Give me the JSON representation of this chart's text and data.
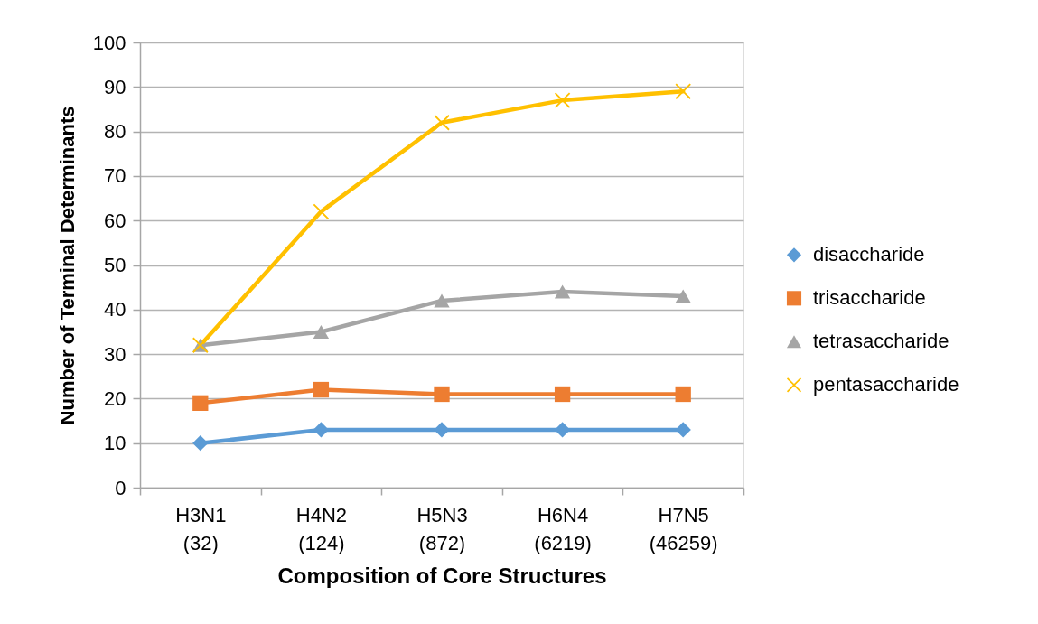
{
  "chart_data": {
    "type": "line",
    "xlabel": "Composition of Core Structures",
    "ylabel": "Number of Terminal Determinants",
    "categories": [
      "H3N1\n(32)",
      "H4N2\n(124)",
      "H5N3\n(872)",
      "H6N4\n(6219)",
      "H7N5\n(46259)"
    ],
    "ylim": [
      0,
      100
    ],
    "yticks": [
      0,
      10,
      20,
      30,
      40,
      50,
      60,
      70,
      80,
      90,
      100
    ],
    "grid": "y",
    "legend": "right",
    "line_style": "solid",
    "series": [
      {
        "name": "disaccharide",
        "color": "#5b9bd5",
        "marker": "diamond",
        "values": [
          10,
          13,
          13,
          13,
          13
        ]
      },
      {
        "name": "trisaccharide",
        "color": "#ed7d31",
        "marker": "square",
        "values": [
          19,
          22,
          21,
          21,
          21
        ]
      },
      {
        "name": "tetrasaccharide",
        "color": "#a5a5a5",
        "marker": "triangle",
        "values": [
          32,
          35,
          42,
          44,
          43
        ]
      },
      {
        "name": "pentasaccharide",
        "color": "#ffc000",
        "marker": "cross",
        "values": [
          32,
          62,
          82,
          87,
          89
        ]
      }
    ]
  }
}
